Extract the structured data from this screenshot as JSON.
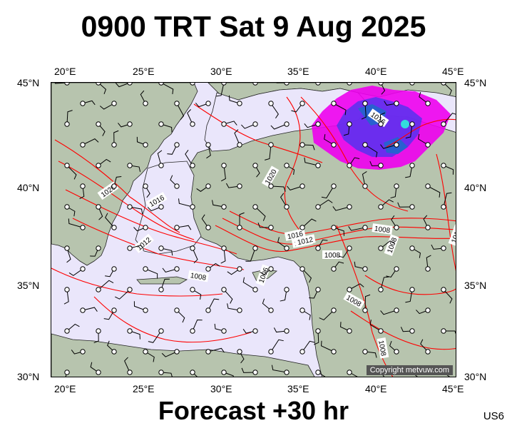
{
  "title": "0900 TRT Sat 9 Aug 2025",
  "footer": "Forecast +30 hr",
  "region_code": "US6",
  "copyright": "Copyright metvuw.com",
  "lon_labels": [
    "20°E",
    "25°E",
    "30°E",
    "35°E",
    "40°E",
    "45°E"
  ],
  "lat_labels": [
    "45°N",
    "40°N",
    "35°N",
    "30°N"
  ],
  "isobar_labels": [
    "1020",
    "1016",
    "1012",
    "1008",
    "1016",
    "1020",
    "1016",
    "1012",
    "1008",
    "1008",
    "1008",
    "1008",
    "1016",
    "1008",
    "1012",
    "1006"
  ],
  "colors": {
    "sea": "#eae6fb",
    "land": "#b7c4ae",
    "isobar": "#ff0000",
    "rain_light": "#ee00ee",
    "rain_mid": "#5533ee",
    "rain_heavy": "#2266cc"
  }
}
